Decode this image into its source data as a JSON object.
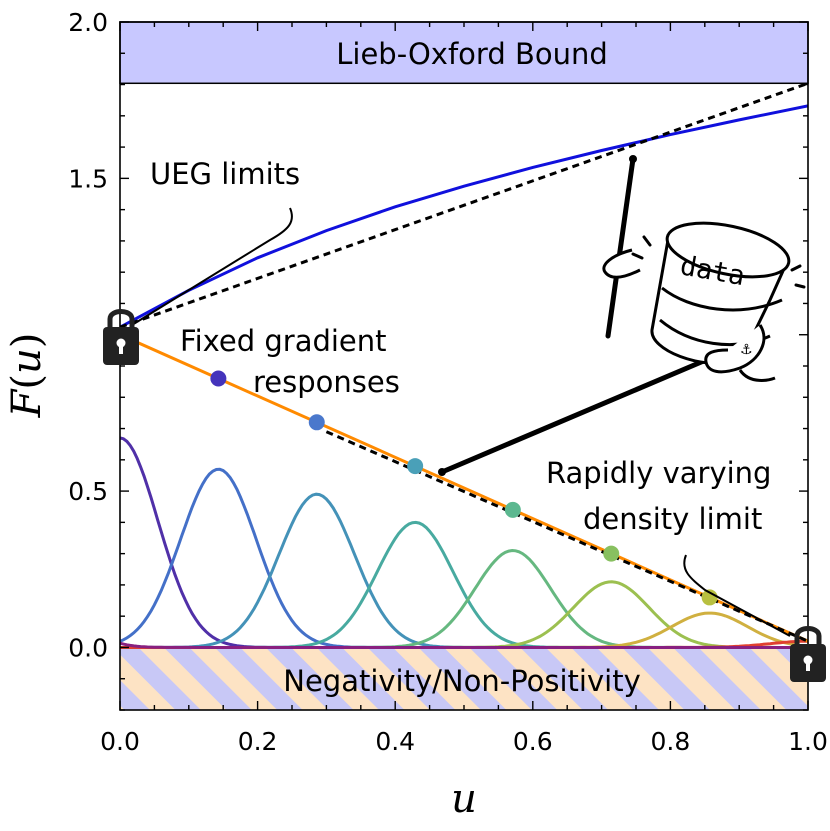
{
  "chart_data": {
    "type": "line",
    "xlabel": "u",
    "ylabel": "F(u)",
    "xlim": [
      0.0,
      1.0
    ],
    "ylim": [
      -0.2,
      2.0
    ],
    "xticks": [
      "0.0",
      "0.2",
      "0.4",
      "0.6",
      "0.8",
      "1.0"
    ],
    "yticks": [
      "0.0",
      "0.5",
      "1.5",
      "2.0"
    ],
    "series": [
      {
        "name": "",
        "style": "blue-solid",
        "color": "#1010dd",
        "x": [
          0,
          0.1,
          0.2,
          0.3,
          0.4,
          0.5,
          0.6,
          0.7,
          0.8,
          0.9,
          1.0
        ],
        "y": [
          1.024,
          1.142,
          1.246,
          1.333,
          1.409,
          1.475,
          1.535,
          1.589,
          1.64,
          1.687,
          1.732
        ]
      },
      {
        "name": "",
        "style": "black-dashed",
        "color": "#000000",
        "x": [
          0,
          1.0
        ],
        "y": [
          1.024,
          1.804
        ]
      },
      {
        "name": "",
        "style": "orange-solid",
        "color": "#ff8a00",
        "x": [
          0,
          1.0
        ],
        "y": [
          1.0,
          0.02
        ]
      },
      {
        "name": "",
        "style": "black-dashed",
        "color": "#000000",
        "x": [
          0.3,
          1.0
        ],
        "y": [
          0.69,
          0.02
        ]
      }
    ],
    "points": [
      {
        "x": 0.143,
        "y": 0.86,
        "color": "#4433bb"
      },
      {
        "x": 0.286,
        "y": 0.72,
        "color": "#4a78cc"
      },
      {
        "x": 0.429,
        "y": 0.58,
        "color": "#4aa0b8"
      },
      {
        "x": 0.571,
        "y": 0.44,
        "color": "#5cb890"
      },
      {
        "x": 0.714,
        "y": 0.3,
        "color": "#88c060"
      },
      {
        "x": 0.857,
        "y": 0.16,
        "color": "#b8c040"
      }
    ],
    "basis_curves": [
      {
        "center": 0.0,
        "peak": 0.67,
        "width": 0.055,
        "color": "#5030a8"
      },
      {
        "center": 0.143,
        "peak": 0.57,
        "width": 0.055,
        "color": "#4470c8"
      },
      {
        "center": 0.286,
        "peak": 0.49,
        "width": 0.055,
        "color": "#4492b8"
      },
      {
        "center": 0.429,
        "peak": 0.4,
        "width": 0.055,
        "color": "#48aaa0"
      },
      {
        "center": 0.571,
        "peak": 0.31,
        "width": 0.055,
        "color": "#66b880"
      },
      {
        "center": 0.714,
        "peak": 0.21,
        "width": 0.055,
        "color": "#9cc050"
      },
      {
        "center": 0.857,
        "peak": 0.11,
        "width": 0.055,
        "color": "#d0b040"
      },
      {
        "center": 1.0,
        "peak": 0.02,
        "width": 0.055,
        "color": "#e04030"
      },
      {
        "center": -0.143,
        "peak": 0.4,
        "width": 0.055,
        "color": "#882080"
      }
    ],
    "regions": {
      "upper": {
        "label": "Lieb-Oxford Bound",
        "y_from": 1.804,
        "y_to": 2.0,
        "color": "#c8c8ff"
      },
      "lower": {
        "label": "Negativity/Non-Positivity",
        "y_from": -0.2,
        "y_to": 0.0,
        "colors": [
          "#fde3c4",
          "#c8c8f6"
        ]
      }
    },
    "annotations": {
      "ueg": "UEG limits",
      "fixed_line1": "Fixed gradient",
      "fixed_line2": "responses",
      "rapid_line1": "Rapidly varying",
      "rapid_line2": "density limit",
      "data_icon": "data"
    }
  }
}
